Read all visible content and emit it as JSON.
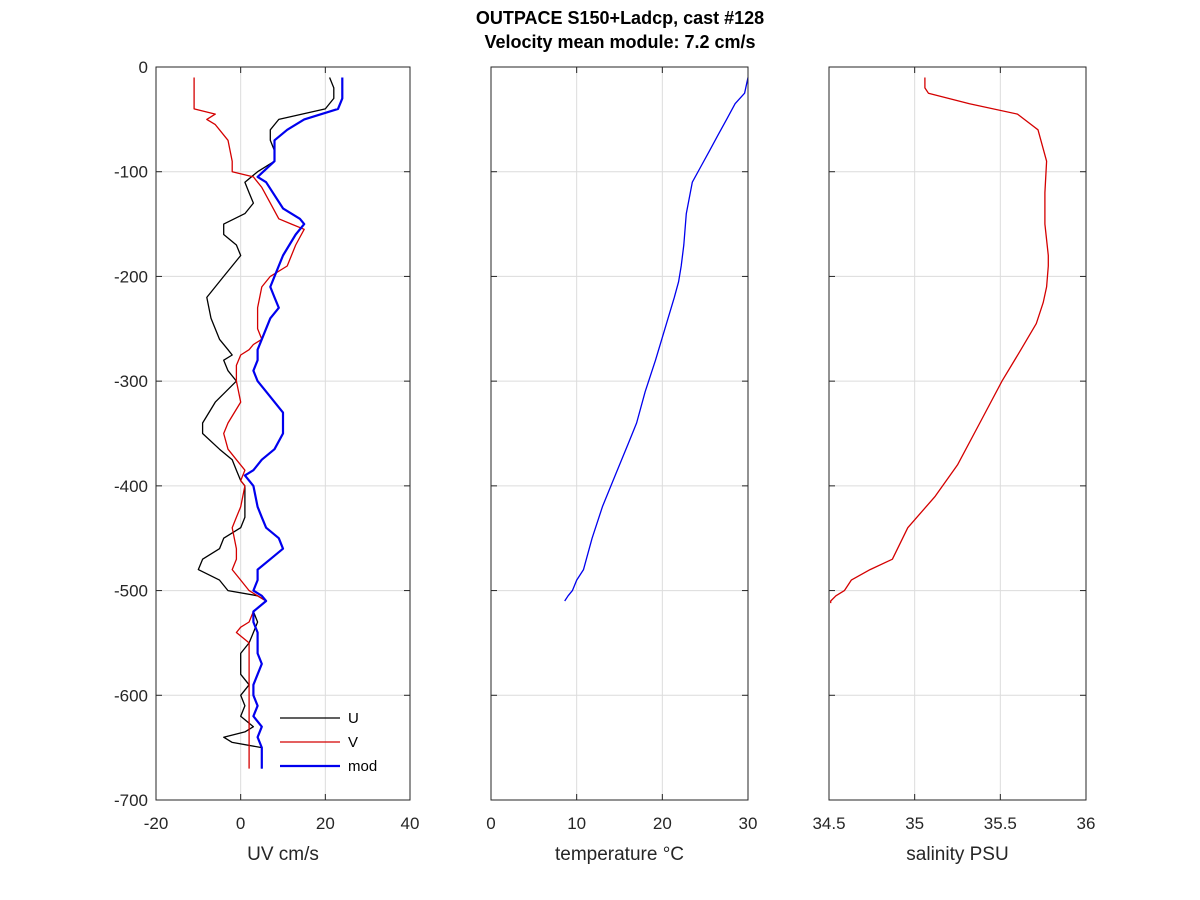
{
  "title_line1": "OUTPACE S150+Ladcp, cast #128",
  "title_line2": "Velocity mean module:  7.2 cm/s",
  "chart_data": [
    {
      "type": "line",
      "id": "uv",
      "xlabel": "UV cm/s",
      "ylabel": "",
      "xlim": [
        -20,
        40
      ],
      "ylim": [
        -700,
        0
      ],
      "xticks": [
        -20,
        0,
        20,
        40
      ],
      "yticks": [
        0,
        -100,
        -200,
        -300,
        -400,
        -500,
        -600,
        -700
      ],
      "show_yticklabels": true,
      "grid": true,
      "legend_position": "bottom-right",
      "series": [
        {
          "name": "U",
          "color": "#000000",
          "x": [
            21,
            22,
            22,
            20,
            9,
            7,
            7,
            8,
            8,
            4,
            1,
            2,
            3,
            1,
            -4,
            -4,
            -1,
            0,
            -4,
            -8,
            -7,
            -5,
            -3,
            -2,
            -4,
            -3,
            -1,
            -6,
            -9,
            -9,
            -5,
            -2,
            -1,
            0,
            1,
            1,
            1,
            0,
            -4,
            -5,
            -9,
            -10,
            -5,
            -3,
            4,
            6,
            3,
            4,
            3,
            2,
            0,
            0,
            0,
            2,
            0,
            1,
            0,
            3,
            1,
            -4,
            -2,
            5,
            5
          ],
          "y": [
            -10,
            -20,
            -30,
            -40,
            -50,
            -60,
            -70,
            -80,
            -90,
            -100,
            -110,
            -120,
            -130,
            -140,
            -150,
            -160,
            -170,
            -180,
            -200,
            -220,
            -240,
            -260,
            -270,
            -275,
            -280,
            -290,
            -300,
            -320,
            -340,
            -350,
            -365,
            -375,
            -385,
            -395,
            -400,
            -420,
            -430,
            -440,
            -450,
            -460,
            -470,
            -480,
            -490,
            -500,
            -505,
            -510,
            -520,
            -530,
            -540,
            -550,
            -560,
            -570,
            -580,
            -590,
            -600,
            -610,
            -620,
            -630,
            -635,
            -640,
            -645,
            -650,
            -670
          ]
        },
        {
          "name": "V",
          "color": "#d40000",
          "x": [
            -11,
            -11,
            -11,
            -6,
            -8,
            -6,
            -3,
            -2,
            -2,
            3,
            5,
            7,
            9,
            12,
            15,
            13,
            11,
            7,
            5,
            4,
            4,
            5,
            3,
            2,
            0,
            -1,
            -1,
            0,
            -3,
            -4,
            -3,
            -1,
            1,
            0,
            1,
            0,
            -1,
            -2,
            -1,
            -1,
            -2,
            0,
            2,
            4,
            6,
            3,
            2,
            0,
            -1,
            2,
            2,
            2,
            2,
            2,
            2,
            2,
            2,
            2,
            2,
            2,
            2
          ],
          "y": [
            -10,
            -20,
            -40,
            -45,
            -50,
            -55,
            -70,
            -90,
            -100,
            -105,
            -115,
            -130,
            -145,
            -150,
            -155,
            -170,
            -190,
            -200,
            -210,
            -230,
            -250,
            -260,
            -265,
            -270,
            -275,
            -285,
            -300,
            -320,
            -340,
            -350,
            -365,
            -375,
            -385,
            -395,
            -400,
            -420,
            -430,
            -440,
            -460,
            -470,
            -480,
            -490,
            -500,
            -505,
            -510,
            -520,
            -530,
            -535,
            -540,
            -550,
            -580,
            -600,
            -620,
            -630,
            -640,
            -645,
            -650,
            -655,
            -660,
            -665,
            -670
          ]
        },
        {
          "name": "mod",
          "color": "#0000ee",
          "x": [
            24,
            24,
            24,
            23,
            15,
            11,
            8,
            8,
            8,
            4,
            6,
            10,
            14,
            15,
            13,
            10,
            8,
            7,
            8,
            9,
            7,
            5,
            4,
            4,
            3,
            4,
            6,
            10,
            10,
            8,
            5,
            3,
            1,
            2,
            3,
            4,
            5,
            6,
            9,
            10,
            7,
            4,
            4,
            3,
            5,
            6,
            3,
            3,
            4,
            4,
            4,
            5,
            4,
            3,
            3,
            4,
            3,
            5,
            4,
            5,
            5,
            5
          ],
          "y": [
            -10,
            -20,
            -30,
            -40,
            -50,
            -60,
            -70,
            -80,
            -90,
            -105,
            -110,
            -135,
            -145,
            -150,
            -160,
            -180,
            -200,
            -210,
            -220,
            -230,
            -240,
            -260,
            -270,
            -280,
            -290,
            -300,
            -310,
            -330,
            -350,
            -365,
            -375,
            -385,
            -390,
            -395,
            -400,
            -420,
            -430,
            -440,
            -450,
            -460,
            -470,
            -480,
            -490,
            -500,
            -505,
            -510,
            -520,
            -530,
            -540,
            -550,
            -560,
            -570,
            -580,
            -590,
            -600,
            -610,
            -620,
            -630,
            -640,
            -650,
            -660,
            -670
          ]
        }
      ]
    },
    {
      "type": "line",
      "id": "temperature",
      "xlabel": "temperature °C",
      "ylabel": "",
      "xlim": [
        0,
        30
      ],
      "ylim": [
        -700,
        0
      ],
      "xticks": [
        0,
        10,
        20,
        30
      ],
      "yticks": [
        0,
        -100,
        -200,
        -300,
        -400,
        -500,
        -600,
        -700
      ],
      "show_yticklabels": false,
      "grid": true,
      "series": [
        {
          "color": "#0000ee",
          "x": [
            30,
            29.6,
            28.5,
            27.5,
            26.5,
            25.5,
            24.5,
            23.5,
            22.8,
            22.5,
            22.2,
            21.9,
            21.4,
            20.3,
            19.2,
            18,
            17,
            16,
            14.5,
            13,
            11.8,
            10.8,
            10,
            9.5,
            9,
            8.6
          ],
          "y": [
            -10,
            -25,
            -35,
            -50,
            -65,
            -80,
            -95,
            -110,
            -140,
            -170,
            -190,
            -205,
            -220,
            -250,
            -280,
            -310,
            -340,
            -360,
            -390,
            -420,
            -450,
            -480,
            -490,
            -500,
            -505,
            -510
          ]
        }
      ]
    },
    {
      "type": "line",
      "id": "salinity",
      "xlabel": "salinity PSU",
      "ylabel": "",
      "xlim": [
        34.5,
        36
      ],
      "ylim": [
        -700,
        0
      ],
      "xticks": [
        34.5,
        35,
        35.5,
        36
      ],
      "yticks": [
        0,
        -100,
        -200,
        -300,
        -400,
        -500,
        -600,
        -700
      ],
      "show_yticklabels": false,
      "grid": true,
      "series": [
        {
          "color": "#d40000",
          "x": [
            35.06,
            35.06,
            35.08,
            35.32,
            35.6,
            35.72,
            35.77,
            35.76,
            35.76,
            35.78,
            35.78,
            35.77,
            35.75,
            35.71,
            35.62,
            35.51,
            35.38,
            35.25,
            35.12,
            34.96,
            34.87,
            34.74,
            34.63,
            34.59,
            34.54,
            34.51,
            34.51
          ],
          "y": [
            -10,
            -20,
            -25,
            -35,
            -45,
            -60,
            -90,
            -120,
            -150,
            -180,
            -190,
            -210,
            -225,
            -245,
            -270,
            -300,
            -340,
            -380,
            -410,
            -440,
            -470,
            -480,
            -490,
            -500,
            -505,
            -510,
            -512
          ]
        }
      ]
    }
  ]
}
